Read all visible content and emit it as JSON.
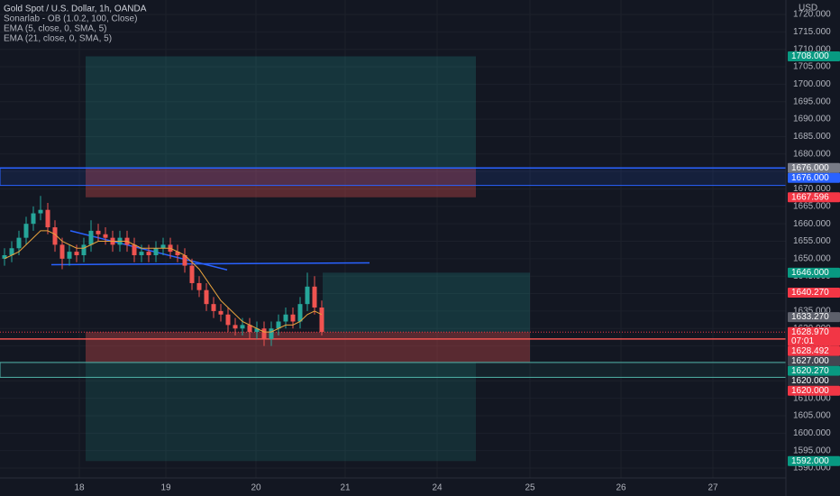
{
  "chart_data": {
    "type": "candlestick",
    "title": "Gold Spot / U.S. Dollar, 1h, OANDA",
    "indicators": [
      "Sonarlab - OB (1.0.2, 100, Close)",
      "EMA (5, close, 0, SMA, 5)",
      "EMA (21, close, 0, SMA, 5)"
    ],
    "currency": "USD",
    "xlim": [
      -1.25,
      216.75
    ],
    "ylim": [
      1587.16,
      1724.14
    ],
    "xticks": [
      {
        "value": 20.75,
        "label": "18"
      },
      {
        "value": 44.75,
        "label": "19"
      },
      {
        "value": 69.75,
        "label": "20"
      },
      {
        "value": 94.5,
        "label": "21"
      },
      {
        "value": 120,
        "label": "24"
      },
      {
        "value": 145.75,
        "label": "25"
      },
      {
        "value": 171,
        "label": "26"
      },
      {
        "value": 196.5,
        "label": "27"
      }
    ],
    "yticks": [
      {
        "value": 1590,
        "label": "1590.000"
      },
      {
        "value": 1595,
        "label": "1595.000"
      },
      {
        "value": 1600,
        "label": "1600.000"
      },
      {
        "value": 1605,
        "label": "1605.000"
      },
      {
        "value": 1610,
        "label": "1610.000"
      },
      {
        "value": 1615,
        "label": "1615.000"
      },
      {
        "value": 1620,
        "label": "1620.000"
      },
      {
        "value": 1625,
        "label": "1625.000"
      },
      {
        "value": 1630,
        "label": "1630.000"
      },
      {
        "value": 1635,
        "label": "1635.000"
      },
      {
        "value": 1640,
        "label": "1640.000"
      },
      {
        "value": 1645,
        "label": "1645.000"
      },
      {
        "value": 1650,
        "label": "1650.000"
      },
      {
        "value": 1655,
        "label": "1655.000"
      },
      {
        "value": 1660,
        "label": "1660.000"
      },
      {
        "value": 1665,
        "label": "1665.000"
      },
      {
        "value": 1670,
        "label": "1670.000"
      },
      {
        "value": 1675,
        "label": "1675.000"
      },
      {
        "value": 1680,
        "label": "1680.000"
      },
      {
        "value": 1685,
        "label": "1685.000"
      },
      {
        "value": 1690,
        "label": "1690.000"
      },
      {
        "value": 1695,
        "label": "1695.000"
      },
      {
        "value": 1700,
        "label": "1700.000"
      },
      {
        "value": 1705,
        "label": "1705.000"
      },
      {
        "value": 1710,
        "label": "1710.000"
      },
      {
        "value": 1715,
        "label": "1715.000"
      },
      {
        "value": 1720,
        "label": "1720.000"
      }
    ],
    "grid": true,
    "up_color": "#26a69a",
    "down_color": "#ef5350",
    "x": [
      0,
      2,
      4,
      6,
      8,
      10,
      12,
      14,
      16,
      18,
      20,
      22,
      24,
      26,
      28,
      30,
      32,
      34,
      36,
      38,
      40,
      42,
      44,
      46,
      48,
      50,
      52,
      54,
      56,
      58,
      60,
      62,
      64,
      66,
      68,
      70,
      72,
      74,
      76,
      78,
      80,
      82,
      84,
      86,
      88
    ],
    "open": [
      1650,
      1651,
      1653,
      1656,
      1660,
      1663,
      1664,
      1659,
      1654,
      1650,
      1652,
      1651,
      1654,
      1658,
      1657,
      1656,
      1654,
      1656,
      1654,
      1651,
      1652,
      1651,
      1653,
      1654,
      1652,
      1651,
      1648,
      1643,
      1641,
      1637,
      1635,
      1634,
      1631,
      1630,
      1631,
      1629,
      1630,
      1627,
      1630,
      1632,
      1634,
      1632,
      1637,
      1642,
      1636
    ],
    "high": [
      1653,
      1655,
      1658,
      1662,
      1665,
      1668,
      1666,
      1661,
      1656,
      1654,
      1654,
      1656,
      1661,
      1660,
      1659,
      1658,
      1658,
      1658,
      1656,
      1654,
      1654,
      1655,
      1656,
      1656,
      1654,
      1653,
      1650,
      1645,
      1643,
      1639,
      1637,
      1636,
      1633,
      1633,
      1633,
      1632,
      1632,
      1632,
      1634,
      1636,
      1636,
      1639,
      1646,
      1645,
      1638
    ],
    "low": [
      1648,
      1649,
      1651,
      1654,
      1658,
      1661,
      1657,
      1652,
      1647,
      1648,
      1649,
      1649,
      1652,
      1655,
      1654,
      1652,
      1652,
      1652,
      1649,
      1649,
      1649,
      1649,
      1651,
      1650,
      1649,
      1646,
      1641,
      1639,
      1635,
      1633,
      1632,
      1629,
      1628,
      1628,
      1627,
      1627,
      1625,
      1625,
      1628,
      1630,
      1630,
      1630,
      1635,
      1634,
      1628
    ],
    "close": [
      1651,
      1653,
      1656,
      1660,
      1663,
      1664,
      1659,
      1654,
      1650,
      1652,
      1651,
      1654,
      1658,
      1657,
      1656,
      1654,
      1656,
      1654,
      1651,
      1652,
      1651,
      1653,
      1654,
      1652,
      1651,
      1648,
      1643,
      1641,
      1637,
      1635,
      1634,
      1631,
      1630,
      1631,
      1629,
      1630,
      1627,
      1630,
      1632,
      1634,
      1632,
      1637,
      1642,
      1636,
      1629
    ],
    "ema": {
      "color": "#e8a33d",
      "values": [
        1650,
        1651,
        1652,
        1654,
        1656,
        1658,
        1658,
        1657,
        1655,
        1654,
        1653,
        1653,
        1654,
        1655,
        1655,
        1655,
        1655,
        1655,
        1654,
        1653,
        1653,
        1653,
        1653,
        1653,
        1652,
        1651,
        1649,
        1647,
        1644,
        1641,
        1638,
        1636,
        1634,
        1632,
        1631,
        1630,
        1629,
        1629,
        1630,
        1631,
        1631,
        1632,
        1634,
        1635,
        1634
      ]
    },
    "zones": [
      {
        "from": 1708,
        "to": 1676,
        "x": [
          22.5,
          130.75
        ],
        "color": "rgba(38,166,154,0.22)"
      },
      {
        "from": 1676,
        "to": 1667.596,
        "x": [
          22.5,
          130.75
        ],
        "color": "rgba(239,83,80,0.32)"
      },
      {
        "from": 1676,
        "to": 1671,
        "x": [
          -1.25,
          216.75
        ],
        "color": "rgba(41,98,255,0.12)",
        "border": "#2962ff"
      },
      {
        "from": 1646,
        "to": 1628.97,
        "x": [
          88.25,
          145.75
        ],
        "color": "rgba(38,166,154,0.22)"
      },
      {
        "from": 1628.97,
        "to": 1620.27,
        "x": [
          22.5,
          145.75
        ],
        "color": "rgba(239,83,80,0.32)"
      },
      {
        "from": 1620.27,
        "to": 1592,
        "x": [
          22.5,
          130.75
        ],
        "color": "rgba(38,166,154,0.16)"
      },
      {
        "from": 1620.27,
        "to": 1616,
        "x": [
          -1.25,
          216.75
        ],
        "color": "rgba(38,166,154,0.08)",
        "border": "#4fb3a8"
      }
    ],
    "trend_lines": [
      {
        "x": [
          18.25,
          61.75
        ],
        "y": [
          1658,
          1646.8
        ],
        "color": "#2962ff"
      },
      {
        "x": [
          13,
          101.25
        ],
        "y": [
          1648.3,
          1648.8
        ],
        "color": "#2962ff"
      }
    ],
    "hlines": [
      {
        "value": 1676,
        "color": "#2962ff"
      },
      {
        "value": 1627,
        "color": "#ef5350"
      }
    ],
    "price_tags": [
      {
        "value": 1708,
        "label": "1708.000",
        "color": "#089981"
      },
      {
        "value": 1676,
        "label": "1676.000",
        "color": "#787b86"
      },
      {
        "value": 1676,
        "label": "1676.000",
        "color": "#2962ff"
      },
      {
        "value": 1667.596,
        "label": "1667.596",
        "color": "#f23645"
      },
      {
        "value": 1646,
        "label": "1646.000",
        "color": "#089981"
      },
      {
        "value": 1640.27,
        "label": "1640.270",
        "color": "#f23645"
      },
      {
        "value": 1633.27,
        "label": "1633.270",
        "color": "#5d606b"
      },
      {
        "value": 1628.97,
        "label": "1628.970",
        "color": "#f23645",
        "countdown": "07:01"
      },
      {
        "value": 1628.492,
        "label": "1628.492",
        "color": "#f23645"
      },
      {
        "value": 1627,
        "label": "1627.000",
        "color": "#434651"
      },
      {
        "value": 1620.27,
        "label": "1620.270",
        "color": "#089981"
      },
      {
        "value": 1620,
        "label": "1620.000",
        "color": "#2a2e39"
      },
      {
        "value": 1620,
        "label": "1620.000",
        "color": "#f23645"
      },
      {
        "value": 1592,
        "label": "1592.000",
        "color": "#089981"
      }
    ]
  }
}
